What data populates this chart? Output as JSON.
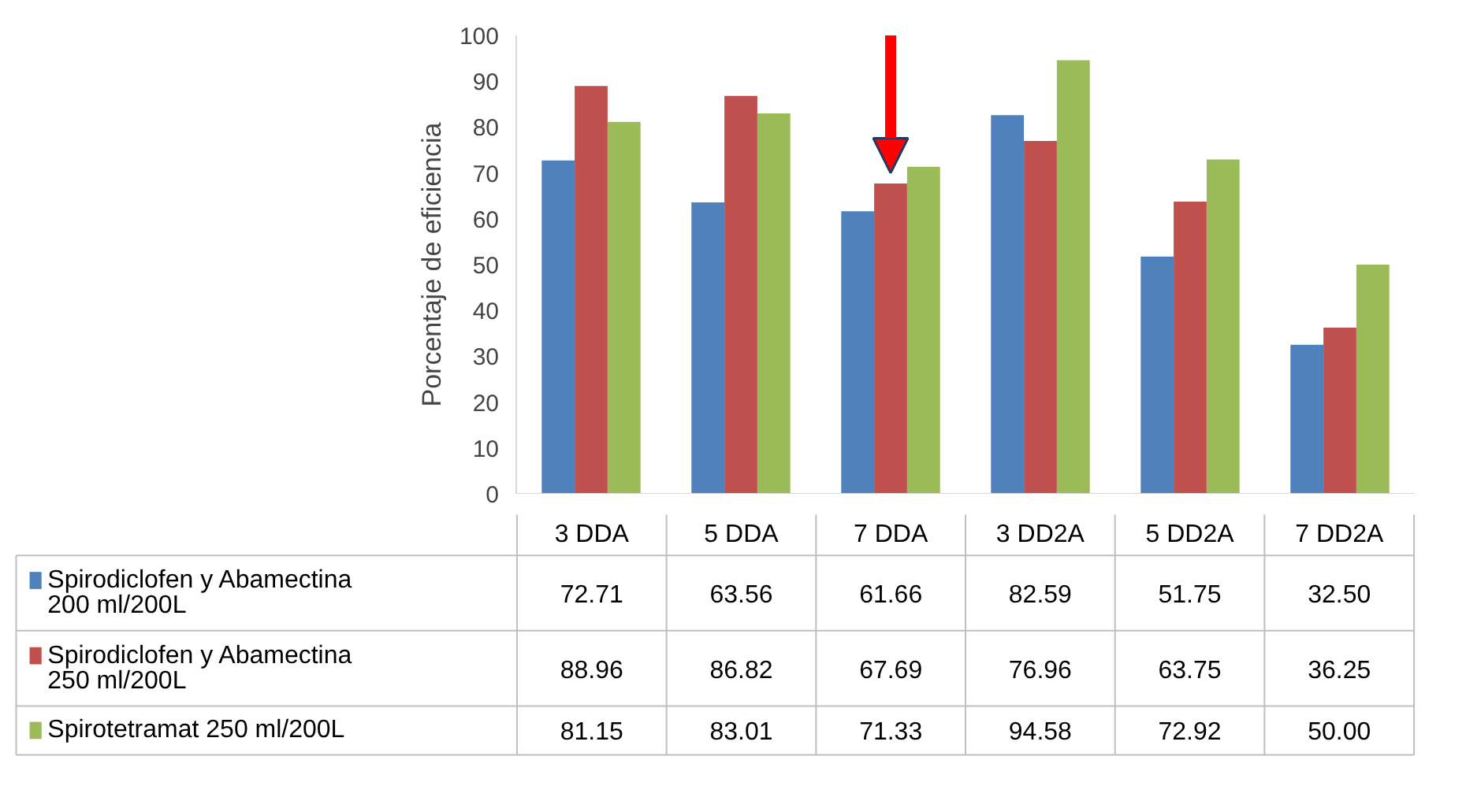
{
  "chart_data": {
    "type": "bar",
    "ylabel": "Porcentaje de eficiencia",
    "categories": [
      "3 DDA",
      "5 DDA",
      "7 DDA",
      "3 DD2A",
      "5 DD2A",
      "7 DD2A"
    ],
    "ylim": [
      0,
      100
    ],
    "yticks": [
      0,
      10,
      20,
      30,
      40,
      50,
      60,
      70,
      80,
      90,
      100
    ],
    "grid": false,
    "legend": "bottom",
    "series": [
      {
        "name": "Spirodiclofen y Abamectina 200 ml/200L",
        "color": "#4f81bd",
        "values": [
          72.71,
          63.56,
          61.66,
          82.59,
          51.75,
          32.5
        ],
        "value_labels": [
          "72.71",
          "63.56",
          "61.66",
          "82.59",
          "51.75",
          "32.50"
        ]
      },
      {
        "name": "Spirodiclofen y Abamectina 250 ml/200L",
        "color": "#c0504d",
        "values": [
          88.96,
          86.82,
          67.69,
          76.96,
          63.75,
          36.25
        ],
        "value_labels": [
          "88.96",
          "86.82",
          "67.69",
          "76.96",
          "63.75",
          "36.25"
        ]
      },
      {
        "name": "Spirotetramat 250 ml/200L",
        "color": "#9bbb59",
        "values": [
          81.15,
          83.01,
          71.33,
          94.58,
          72.92,
          50.0
        ],
        "value_labels": [
          "81.15",
          "83.01",
          "71.33",
          "94.58",
          "72.92",
          "50.00"
        ]
      }
    ]
  }
}
